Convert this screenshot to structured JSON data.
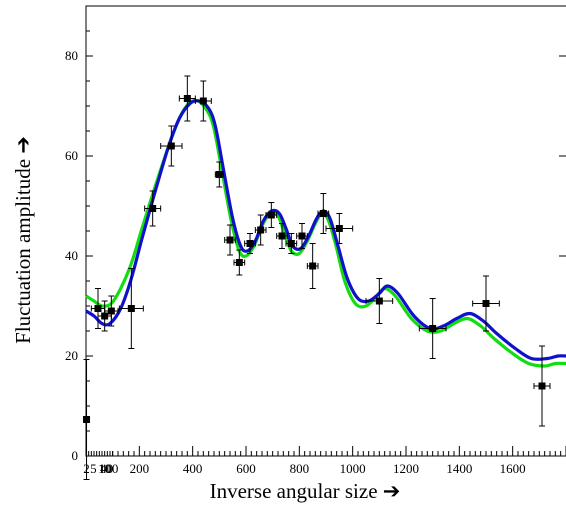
{
  "chart_data": {
    "type": "scatter",
    "title": "",
    "xlabel": "Inverse angular size ➔",
    "ylabel": "Fluctuation amplitude ➔",
    "xlim": [
      0,
      1800
    ],
    "ylim": [
      0,
      90
    ],
    "grid": false,
    "x_tick_labels": [
      "2",
      "5",
      "10",
      "40",
      "100",
      "200",
      "400",
      "600",
      "800",
      "1000",
      "1200",
      "1400",
      "1600"
    ],
    "x_tick_label_values": [
      2,
      5,
      10,
      40,
      100,
      200,
      400,
      600,
      800,
      1000,
      1200,
      1400,
      1600
    ],
    "y_ticks": [
      0,
      20,
      40,
      60,
      80
    ],
    "series": [
      {
        "type": "scatter",
        "color": "#000000",
        "points": [
          {
            "x": 2,
            "y": 7.3,
            "xerr": 2,
            "yerr": 12
          },
          {
            "x": 45,
            "y": 29.5,
            "xerr": 25,
            "yerr": 4
          },
          {
            "x": 70,
            "y": 28,
            "xerr": 25,
            "yerr": 3
          },
          {
            "x": 95,
            "y": 29,
            "xerr": 25,
            "yerr": 3
          },
          {
            "x": 170,
            "y": 29.5,
            "xerr": 45,
            "yerr": 8
          },
          {
            "x": 250,
            "y": 49.5,
            "xerr": 30,
            "yerr": 3.5
          },
          {
            "x": 320,
            "y": 62,
            "xerr": 40,
            "yerr": 4
          },
          {
            "x": 380,
            "y": 71.5,
            "xerr": 30,
            "yerr": 4.5
          },
          {
            "x": 440,
            "y": 71,
            "xerr": 30,
            "yerr": 4
          },
          {
            "x": 500,
            "y": 56.3,
            "xerr": 15,
            "yerr": 2.5
          },
          {
            "x": 540,
            "y": 43.2,
            "xerr": 20,
            "yerr": 3
          },
          {
            "x": 575,
            "y": 38.7,
            "xerr": 20,
            "yerr": 2.5
          },
          {
            "x": 615,
            "y": 42.5,
            "xerr": 20,
            "yerr": 2
          },
          {
            "x": 655,
            "y": 45.2,
            "xerr": 20,
            "yerr": 3
          },
          {
            "x": 695,
            "y": 48.2,
            "xerr": 20,
            "yerr": 2.5
          },
          {
            "x": 735,
            "y": 44,
            "xerr": 20,
            "yerr": 2.5
          },
          {
            "x": 770,
            "y": 42.5,
            "xerr": 20,
            "yerr": 2
          },
          {
            "x": 810,
            "y": 44,
            "xerr": 20,
            "yerr": 2.5
          },
          {
            "x": 850,
            "y": 38,
            "xerr": 20,
            "yerr": 4.5
          },
          {
            "x": 890,
            "y": 48.5,
            "xerr": 20,
            "yerr": 4
          },
          {
            "x": 950,
            "y": 45.5,
            "xerr": 50,
            "yerr": 3
          },
          {
            "x": 1100,
            "y": 31,
            "xerr": 50,
            "yerr": 4.5
          },
          {
            "x": 1300,
            "y": 25.5,
            "xerr": 50,
            "yerr": 6
          },
          {
            "x": 1500,
            "y": 30.5,
            "xerr": 50,
            "yerr": 5.5
          },
          {
            "x": 1710,
            "y": 14,
            "xerr": 30,
            "yerr": 8
          }
        ]
      },
      {
        "type": "line",
        "color": "#11dd11",
        "points": [
          [
            0,
            32
          ],
          [
            30,
            31
          ],
          [
            60,
            30
          ],
          [
            95,
            30.5
          ],
          [
            130,
            33.5
          ],
          [
            170,
            38.5
          ],
          [
            210,
            45.5
          ],
          [
            260,
            54
          ],
          [
            310,
            62
          ],
          [
            350,
            67.5
          ],
          [
            385,
            70.5
          ],
          [
            420,
            71
          ],
          [
            455,
            69
          ],
          [
            480,
            65.5
          ],
          [
            510,
            57
          ],
          [
            545,
            47
          ],
          [
            575,
            41
          ],
          [
            600,
            40
          ],
          [
            630,
            42
          ],
          [
            660,
            46
          ],
          [
            690,
            48.5
          ],
          [
            720,
            48
          ],
          [
            745,
            44.5
          ],
          [
            770,
            41
          ],
          [
            800,
            40.5
          ],
          [
            830,
            43
          ],
          [
            860,
            46.5
          ],
          [
            885,
            48.5
          ],
          [
            910,
            47
          ],
          [
            940,
            41.5
          ],
          [
            970,
            35
          ],
          [
            1010,
            30.5
          ],
          [
            1050,
            30
          ],
          [
            1090,
            32
          ],
          [
            1120,
            33.5
          ],
          [
            1160,
            32
          ],
          [
            1220,
            27.5
          ],
          [
            1280,
            25
          ],
          [
            1330,
            25
          ],
          [
            1380,
            26.5
          ],
          [
            1430,
            27.5
          ],
          [
            1480,
            26
          ],
          [
            1530,
            23.5
          ],
          [
            1600,
            20.5
          ],
          [
            1660,
            18.5
          ],
          [
            1720,
            18
          ],
          [
            1760,
            18.5
          ],
          [
            1800,
            18.5
          ]
        ]
      },
      {
        "type": "line",
        "color": "#1111cc",
        "points": [
          [
            0,
            29
          ],
          [
            30,
            28
          ],
          [
            60,
            26.5
          ],
          [
            90,
            26.5
          ],
          [
            130,
            29.5
          ],
          [
            170,
            35.5
          ],
          [
            210,
            43.5
          ],
          [
            260,
            53
          ],
          [
            310,
            62
          ],
          [
            350,
            67.5
          ],
          [
            390,
            70.5
          ],
          [
            425,
            71
          ],
          [
            460,
            69.5
          ],
          [
            485,
            66
          ],
          [
            515,
            57.5
          ],
          [
            550,
            47.5
          ],
          [
            580,
            42
          ],
          [
            605,
            41
          ],
          [
            635,
            43
          ],
          [
            665,
            47
          ],
          [
            695,
            49
          ],
          [
            725,
            48.5
          ],
          [
            750,
            45.5
          ],
          [
            775,
            42
          ],
          [
            805,
            41.5
          ],
          [
            835,
            44
          ],
          [
            865,
            47.5
          ],
          [
            890,
            49
          ],
          [
            915,
            47.5
          ],
          [
            945,
            42
          ],
          [
            980,
            35.5
          ],
          [
            1020,
            31.5
          ],
          [
            1060,
            31
          ],
          [
            1100,
            32.5
          ],
          [
            1130,
            34
          ],
          [
            1170,
            32.5
          ],
          [
            1230,
            28
          ],
          [
            1290,
            25.5
          ],
          [
            1340,
            26
          ],
          [
            1390,
            27.5
          ],
          [
            1440,
            28.5
          ],
          [
            1490,
            27
          ],
          [
            1540,
            24.5
          ],
          [
            1610,
            21.5
          ],
          [
            1670,
            19.5
          ],
          [
            1730,
            19.5
          ],
          [
            1770,
            20
          ],
          [
            1800,
            20
          ]
        ]
      }
    ]
  }
}
